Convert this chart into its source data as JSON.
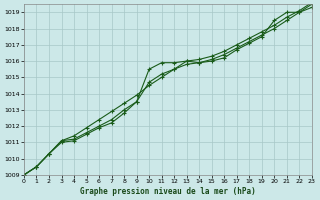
{
  "xlabel": "Graphe pression niveau de la mer (hPa)",
  "xlim": [
    0,
    23
  ],
  "ylim": [
    1009,
    1019.5
  ],
  "yticks": [
    1009,
    1010,
    1011,
    1012,
    1013,
    1014,
    1015,
    1016,
    1017,
    1018,
    1019
  ],
  "xticks": [
    0,
    1,
    2,
    3,
    4,
    5,
    6,
    7,
    8,
    9,
    10,
    11,
    12,
    13,
    14,
    15,
    16,
    17,
    18,
    19,
    20,
    21,
    22,
    23
  ],
  "background_color": "#cce8e8",
  "grid_color": "#a8c8c8",
  "line_color": "#1a5c1a",
  "series": [
    [
      1009.0,
      1009.5,
      1010.3,
      1011.0,
      1011.1,
      1011.5,
      1011.9,
      1012.2,
      1012.8,
      1013.5,
      1015.5,
      1015.9,
      1015.9,
      1016.0,
      1015.9,
      1016.0,
      1016.2,
      1016.7,
      1017.1,
      1017.5,
      1018.5,
      1019.0,
      1019.0,
      1019.3
    ],
    [
      1009.0,
      1009.5,
      1010.3,
      1011.1,
      1011.2,
      1011.6,
      1012.0,
      1012.4,
      1013.0,
      1013.5,
      1014.7,
      1015.2,
      1015.5,
      1015.8,
      1015.9,
      1016.1,
      1016.4,
      1016.8,
      1017.2,
      1017.6,
      1018.0,
      1018.5,
      1019.0,
      1019.5
    ],
    [
      1009.0,
      1009.5,
      1010.3,
      1011.1,
      1011.4,
      1011.9,
      1012.4,
      1012.9,
      1013.4,
      1013.9,
      1014.5,
      1015.0,
      1015.5,
      1016.0,
      1016.1,
      1016.3,
      1016.6,
      1017.0,
      1017.4,
      1017.8,
      1018.2,
      1018.7,
      1019.1,
      1019.6
    ]
  ]
}
